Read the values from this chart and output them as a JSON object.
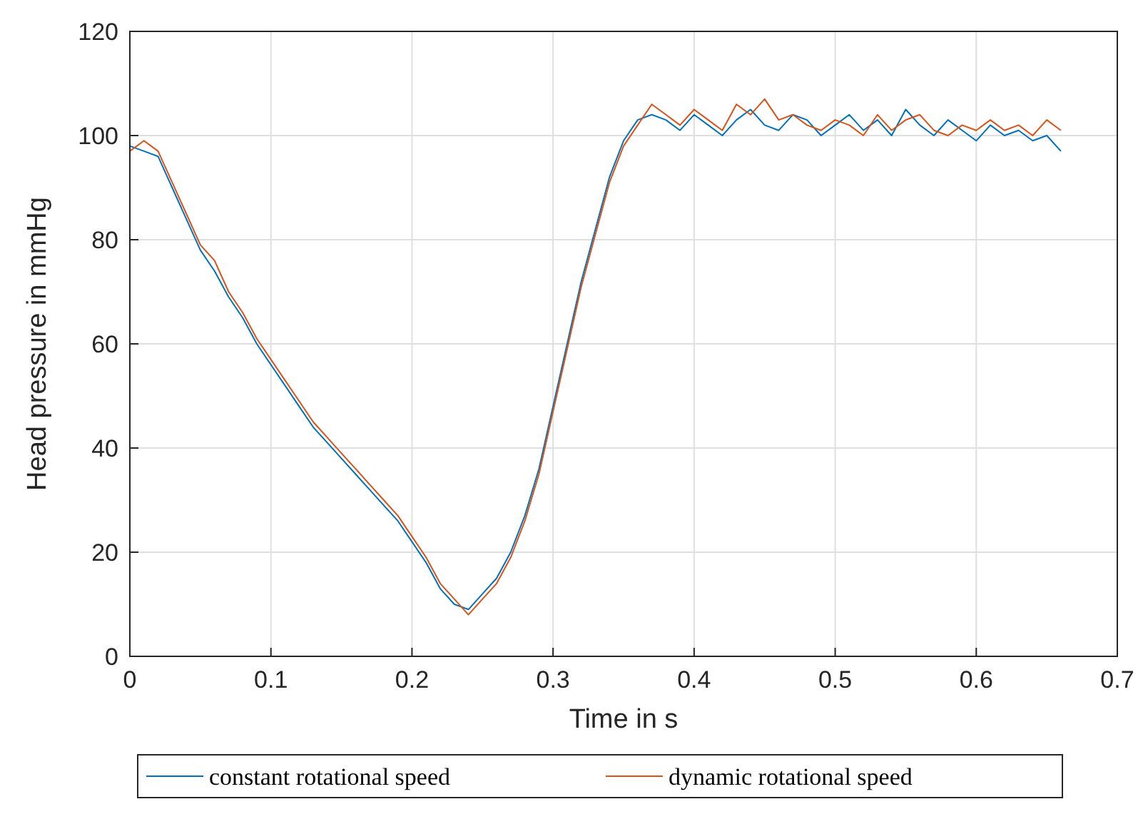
{
  "chart_data": {
    "type": "line",
    "xlabel": "Time in s",
    "ylabel": "Head pressure in mmHg",
    "xlim": [
      0,
      0.7
    ],
    "ylim": [
      0,
      120
    ],
    "xticks": [
      0,
      0.1,
      0.2,
      0.3,
      0.4,
      0.5,
      0.6,
      0.7
    ],
    "yticks": [
      0,
      20,
      40,
      60,
      80,
      100,
      120
    ],
    "grid": true,
    "legend": "bottom",
    "line_style": "solid",
    "x": [
      0,
      0.01,
      0.02,
      0.03,
      0.04,
      0.05,
      0.06,
      0.07,
      0.08,
      0.09,
      0.1,
      0.11,
      0.12,
      0.13,
      0.14,
      0.15,
      0.16,
      0.17,
      0.18,
      0.19,
      0.2,
      0.21,
      0.22,
      0.23,
      0.24,
      0.25,
      0.26,
      0.27,
      0.28,
      0.29,
      0.3,
      0.31,
      0.32,
      0.33,
      0.34,
      0.35,
      0.36,
      0.37,
      0.38,
      0.39,
      0.4,
      0.41,
      0.42,
      0.43,
      0.44,
      0.45,
      0.46,
      0.47,
      0.48,
      0.49,
      0.5,
      0.51,
      0.52,
      0.53,
      0.54,
      0.55,
      0.56,
      0.57,
      0.58,
      0.59,
      0.6,
      0.61,
      0.62,
      0.63,
      0.64,
      0.65,
      0.66
    ],
    "series": [
      {
        "name": "constant rotational speed",
        "color": "#0072bd",
        "values": [
          98,
          97,
          96,
          90,
          84,
          78,
          74,
          69,
          65,
          60,
          56,
          52,
          48,
          44,
          41,
          38,
          35,
          32,
          29,
          26,
          22,
          18,
          13,
          10,
          9,
          12,
          15,
          20,
          27,
          36,
          48,
          60,
          72,
          82,
          92,
          99,
          103,
          104,
          103,
          101,
          104,
          102,
          100,
          103,
          105,
          102,
          101,
          104,
          103,
          100,
          102,
          104,
          101,
          103,
          100,
          105,
          102,
          100,
          103,
          101,
          99,
          102,
          100,
          101,
          99,
          100,
          97
        ]
      },
      {
        "name": "dynamic rotational speed",
        "color": "#d95319",
        "values": [
          97,
          99,
          97,
          91,
          85,
          79,
          76,
          70,
          66,
          61,
          57,
          53,
          49,
          45,
          42,
          39,
          36,
          33,
          30,
          27,
          23,
          19,
          14,
          11,
          8,
          11,
          14,
          19,
          26,
          35,
          47,
          59,
          71,
          81,
          91,
          98,
          102,
          106,
          104,
          102,
          105,
          103,
          101,
          106,
          104,
          107,
          103,
          104,
          102,
          101,
          103,
          102,
          100,
          104,
          101,
          103,
          104,
          101,
          100,
          102,
          101,
          103,
          101,
          102,
          100,
          103,
          101
        ]
      }
    ]
  }
}
